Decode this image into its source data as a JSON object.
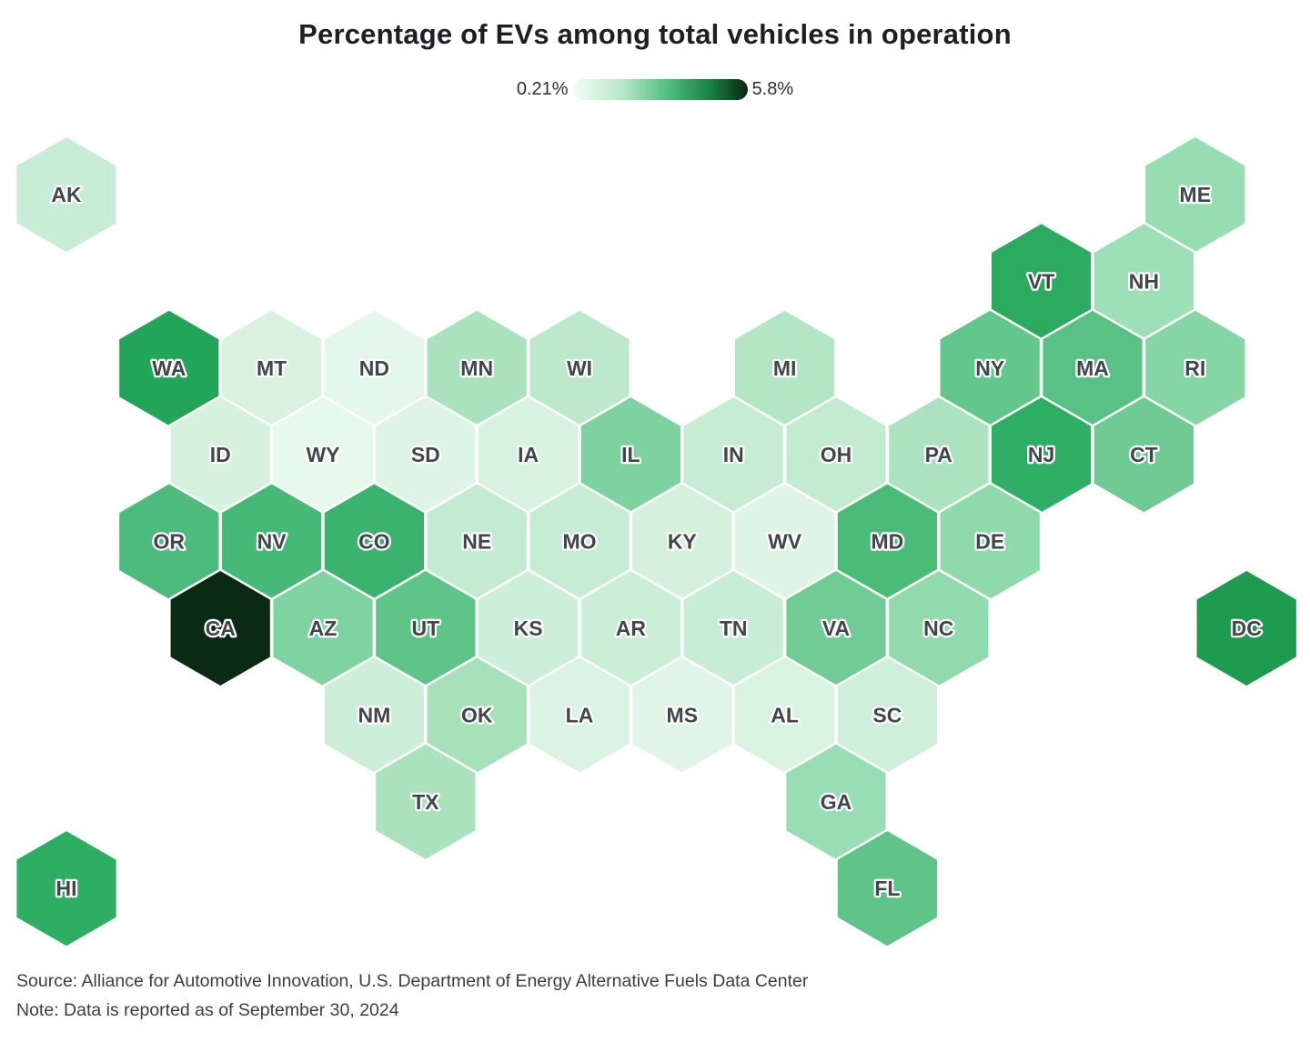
{
  "chart_data": {
    "type": "heatmap",
    "subtype": "us_hex_tile_cartogram",
    "title": "Percentage of EVs among total vehicles in operation",
    "colorbar": {
      "min_label": "0.21%",
      "max_label": "5.8%",
      "gradient_css": [
        "#f2fcf6 0%",
        "#b9e7c9 28%",
        "#4dbd7c 55%",
        "#157c40 80%",
        "#0b2611 100%"
      ]
    },
    "label_color": "#41464a",
    "states": [
      {
        "abbr": "AK",
        "col": 0,
        "row": 0,
        "color": "#c8edd6"
      },
      {
        "abbr": "ME",
        "col": 22,
        "row": 0,
        "color": "#96ddb2"
      },
      {
        "abbr": "VT",
        "col": 19,
        "row": 1,
        "color": "#2baa60"
      },
      {
        "abbr": "NH",
        "col": 21,
        "row": 1,
        "color": "#9ddfb6"
      },
      {
        "abbr": "WA",
        "col": 2,
        "row": 2,
        "color": "#23a559"
      },
      {
        "abbr": "MT",
        "col": 4,
        "row": 2,
        "color": "#d9f2e0"
      },
      {
        "abbr": "ND",
        "col": 6,
        "row": 2,
        "color": "#e4f7ea"
      },
      {
        "abbr": "MN",
        "col": 8,
        "row": 2,
        "color": "#a9e2bd"
      },
      {
        "abbr": "WI",
        "col": 10,
        "row": 2,
        "color": "#bde8cc"
      },
      {
        "abbr": "MI",
        "col": 14,
        "row": 2,
        "color": "#b4e5c5"
      },
      {
        "abbr": "NY",
        "col": 18,
        "row": 2,
        "color": "#63c78c"
      },
      {
        "abbr": "MA",
        "col": 20,
        "row": 2,
        "color": "#58c183"
      },
      {
        "abbr": "RI",
        "col": 22,
        "row": 2,
        "color": "#85d5a5"
      },
      {
        "abbr": "ID",
        "col": 3,
        "row": 3,
        "color": "#d6f1de"
      },
      {
        "abbr": "WY",
        "col": 5,
        "row": 3,
        "color": "#e7f8ec"
      },
      {
        "abbr": "SD",
        "col": 7,
        "row": 3,
        "color": "#def4e5"
      },
      {
        "abbr": "IA",
        "col": 9,
        "row": 3,
        "color": "#d8f2e0"
      },
      {
        "abbr": "IL",
        "col": 11,
        "row": 3,
        "color": "#7dd2a0"
      },
      {
        "abbr": "IN",
        "col": 13,
        "row": 3,
        "color": "#c6ecd3"
      },
      {
        "abbr": "OH",
        "col": 15,
        "row": 3,
        "color": "#c2ebd0"
      },
      {
        "abbr": "PA",
        "col": 17,
        "row": 3,
        "color": "#abe2bf"
      },
      {
        "abbr": "NJ",
        "col": 19,
        "row": 3,
        "color": "#2fae66"
      },
      {
        "abbr": "CT",
        "col": 21,
        "row": 3,
        "color": "#6fcb93"
      },
      {
        "abbr": "OR",
        "col": 2,
        "row": 4,
        "color": "#4cbb7b"
      },
      {
        "abbr": "NV",
        "col": 4,
        "row": 4,
        "color": "#46b976"
      },
      {
        "abbr": "CO",
        "col": 6,
        "row": 4,
        "color": "#3bb26e"
      },
      {
        "abbr": "NE",
        "col": 8,
        "row": 4,
        "color": "#c3ebd1"
      },
      {
        "abbr": "MO",
        "col": 10,
        "row": 4,
        "color": "#c6ecd3"
      },
      {
        "abbr": "KY",
        "col": 12,
        "row": 4,
        "color": "#d5f1dd"
      },
      {
        "abbr": "WV",
        "col": 14,
        "row": 4,
        "color": "#def5e5"
      },
      {
        "abbr": "MD",
        "col": 16,
        "row": 4,
        "color": "#4abc78"
      },
      {
        "abbr": "DE",
        "col": 18,
        "row": 4,
        "color": "#8fdaab"
      },
      {
        "abbr": "CA",
        "col": 3,
        "row": 5,
        "color": "#0a2a13"
      },
      {
        "abbr": "AZ",
        "col": 5,
        "row": 5,
        "color": "#7ed3a1"
      },
      {
        "abbr": "UT",
        "col": 7,
        "row": 5,
        "color": "#5fc487"
      },
      {
        "abbr": "KS",
        "col": 9,
        "row": 5,
        "color": "#cdeed9"
      },
      {
        "abbr": "AR",
        "col": 11,
        "row": 5,
        "color": "#cbeed7"
      },
      {
        "abbr": "TN",
        "col": 13,
        "row": 5,
        "color": "#c8edd5"
      },
      {
        "abbr": "VA",
        "col": 15,
        "row": 5,
        "color": "#70cb94"
      },
      {
        "abbr": "NC",
        "col": 17,
        "row": 5,
        "color": "#91daac"
      },
      {
        "abbr": "DC",
        "col": 23,
        "row": 5,
        "color": "#1f9b50"
      },
      {
        "abbr": "NM",
        "col": 6,
        "row": 6,
        "color": "#cdeed9"
      },
      {
        "abbr": "OK",
        "col": 8,
        "row": 6,
        "color": "#a6e1ba"
      },
      {
        "abbr": "LA",
        "col": 10,
        "row": 6,
        "color": "#dbf3e2"
      },
      {
        "abbr": "MS",
        "col": 12,
        "row": 6,
        "color": "#e0f5e7"
      },
      {
        "abbr": "AL",
        "col": 14,
        "row": 6,
        "color": "#d9f3e1"
      },
      {
        "abbr": "SC",
        "col": 16,
        "row": 6,
        "color": "#d0efdb"
      },
      {
        "abbr": "TX",
        "col": 7,
        "row": 7,
        "color": "#aae2bd"
      },
      {
        "abbr": "GA",
        "col": 15,
        "row": 7,
        "color": "#98ddb3"
      },
      {
        "abbr": "HI",
        "col": 0,
        "row": 8,
        "color": "#2eae62"
      },
      {
        "abbr": "FL",
        "col": 16,
        "row": 8,
        "color": "#5fc487"
      }
    ]
  },
  "footer": {
    "source": "Source: Alliance for Automotive Innovation, U.S. Department of Energy Alternative Fuels Data Center",
    "note": "Note: Data is reported as of September 30, 2024"
  }
}
